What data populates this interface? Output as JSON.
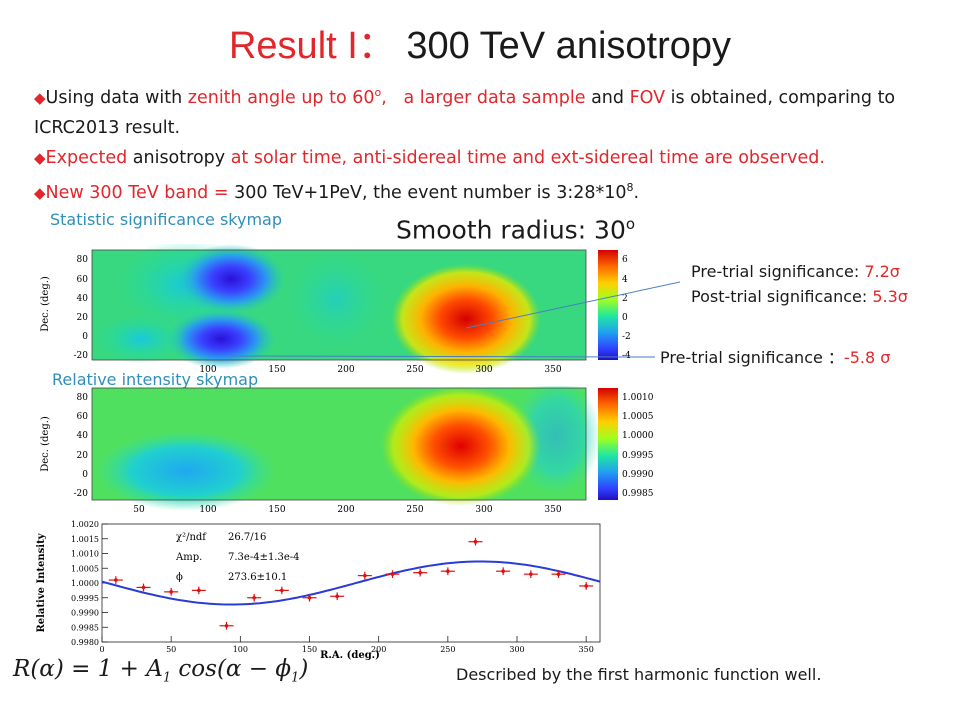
{
  "title": {
    "prefix": "Result I：",
    "main": "300 TeV anisotropy"
  },
  "bullets": {
    "b1_part1": "Using data with ",
    "b1_red1": "zenith angle up to 60",
    "b1_sup": "o",
    "b1_part2": ",",
    "b1_red2": "a larger data sample",
    "b1_part3": " and ",
    "b1_red3": "FOV",
    "b1_part4": " is obtained, comparing to ICRC2013 result.",
    "b2_red1": "Expected",
    "b2_part1": "  anisotropy ",
    "b2_red2": "at solar time, anti-sidereal time and ext-sidereal time are observed.",
    "b3_red": "New 300 TeV band = ",
    "b3_part1": " 300 TeV+1PeV, the event number is 3:28*10",
    "b3_sup": "8",
    "b3_end": "."
  },
  "captions": {
    "significance": "Statistic significance skymap",
    "relative": "Relative intensity skymap"
  },
  "smooth": {
    "label": "Smooth radius: 30",
    "sup": "o"
  },
  "annotations": {
    "pre_trial": "Pre-trial significance: ",
    "pre_trial_val": "7.2σ",
    "post_trial": "Post-trial significance: ",
    "post_trial_val": "5.3σ",
    "pre_trial_min": "Pre-trial significance ：",
    "pre_trial_min_val": "-5.8 σ"
  },
  "map1": {
    "y_axis_label": "Dec. (deg.)",
    "y_ticks": [
      "80",
      "60",
      "40",
      "20",
      "0",
      "-20"
    ],
    "x_ticks": [
      "100",
      "150",
      "200",
      "250",
      "300",
      "350"
    ],
    "colorbar_ticks": [
      "6",
      "4",
      "2",
      "0",
      "-2",
      "-4"
    ]
  },
  "map2": {
    "y_axis_label": "Dec. (deg.)",
    "y_ticks": [
      "80",
      "60",
      "40",
      "20",
      "0",
      "-20"
    ],
    "x_ticks": [
      "50",
      "100",
      "150",
      "200",
      "250",
      "300",
      "350"
    ],
    "colorbar_ticks": [
      "1.0010",
      "1.0005",
      "1.0000",
      "0.9995",
      "0.9990",
      "0.9985"
    ]
  },
  "fit_panel": {
    "chi2_label": "χ²/ndf",
    "chi2_val": "26.7/16",
    "amp_label": "Amp.",
    "amp_val": "7.3e-4±1.3e-4",
    "phi_label": "ϕ",
    "phi_val": "273.6±10.1"
  },
  "chart_data": {
    "type": "scatter",
    "xlabel": "R.A. (deg.)",
    "ylabel": "Relative Intensity",
    "xlim": [
      0,
      360
    ],
    "ylim": [
      0.998,
      1.002
    ],
    "x_ticks": [
      0,
      50,
      100,
      150,
      200,
      250,
      300,
      350
    ],
    "y_ticks": [
      0.998,
      0.9985,
      0.999,
      0.9995,
      1.0,
      1.0005,
      1.001,
      1.0015,
      1.002
    ],
    "y_tick_labels": [
      "0.9980",
      "0.9985",
      "0.9990",
      "0.9995",
      "1.0000",
      "1.0005",
      "1.0010",
      "1.0015",
      "1.0020"
    ],
    "series": [
      {
        "x": [
          10,
          30,
          50,
          70,
          90,
          110,
          130,
          150,
          170,
          190,
          210,
          230,
          250,
          270,
          290,
          310,
          330,
          350
        ],
        "y": [
          1.0001,
          0.99985,
          0.9997,
          0.99975,
          0.99855,
          0.9995,
          0.99975,
          0.9995,
          0.99955,
          1.00025,
          1.0003,
          1.00035,
          1.0004,
          1.0014,
          1.0004,
          1.0003,
          1.0003,
          0.9999
        ],
        "yerr": 0.00013
      }
    ],
    "fit": {
      "amp": 0.00073,
      "phase_deg": 273.6,
      "offset": 1.0
    }
  },
  "formula": {
    "text": "R(α) = 1 + A",
    "sub1": "1",
    "mid": " cos(α − ϕ",
    "sub2": "1",
    "end": ")"
  },
  "footer": "Described by the first harmonic function well.",
  "colors": {
    "accent_red": "#e2262b",
    "caption_blue": "#2e8fb8",
    "fit_line": "#2a3bd6",
    "points": "#e01010"
  }
}
